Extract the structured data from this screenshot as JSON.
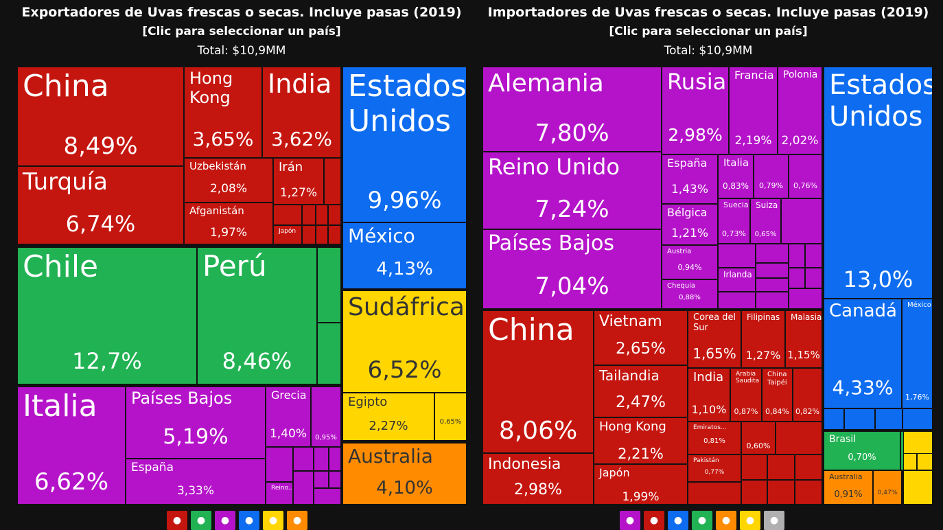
{
  "exporters": {
    "title": "Exportadores de Uvas frescas o secas. Incluye pasas (2019)",
    "subtitle": "[Clic para seleccionar un país]",
    "total": "Total: $10,9MM"
  },
  "importers": {
    "title": "Importadores de Uvas frescas o secas. Incluye pasas (2019)",
    "subtitle": "[Clic para seleccionar un país]",
    "total": "Total: $10,9MM"
  },
  "colors": {
    "asia": "#c4160f",
    "southamerica": "#21b253",
    "europe": "#b513c9",
    "northamerica": "#0d6cf0",
    "africa": "#ffd600",
    "oceania": "#ff8c00",
    "other": "#b0b0b0"
  },
  "chart_data": [
    {
      "type": "treemap",
      "title": "Exportadores de Uvas frescas o secas. Incluye pasas (2019)",
      "items": [
        {
          "name": "China",
          "value": "8,49%",
          "region": "asia"
        },
        {
          "name": "Hong Kong",
          "value": "3,65%",
          "region": "asia"
        },
        {
          "name": "India",
          "value": "3,62%",
          "region": "asia"
        },
        {
          "name": "Turquía",
          "value": "6,74%",
          "region": "asia"
        },
        {
          "name": "Uzbekistán",
          "value": "2,08%",
          "region": "asia"
        },
        {
          "name": "Irán",
          "value": "1,27%",
          "region": "asia"
        },
        {
          "name": "Afganistán",
          "value": "1,97%",
          "region": "asia"
        },
        {
          "name": "Japón",
          "value": "",
          "region": "asia"
        },
        {
          "name": "Chile",
          "value": "12,7%",
          "region": "southamerica"
        },
        {
          "name": "Perú",
          "value": "8,46%",
          "region": "southamerica"
        },
        {
          "name": "Italia",
          "value": "6,62%",
          "region": "europe"
        },
        {
          "name": "Países Bajos",
          "value": "5,19%",
          "region": "europe"
        },
        {
          "name": "España",
          "value": "3,33%",
          "region": "europe"
        },
        {
          "name": "Grecia",
          "value": "1,40%",
          "region": "europe"
        },
        {
          "name": "",
          "value": "0,95%",
          "region": "europe"
        },
        {
          "name": "Reino...",
          "value": "",
          "region": "europe"
        },
        {
          "name": "Estados Unidos",
          "value": "9,96%",
          "region": "northamerica"
        },
        {
          "name": "México",
          "value": "4,13%",
          "region": "northamerica"
        },
        {
          "name": "Sudáfrica",
          "value": "6,52%",
          "region": "africa"
        },
        {
          "name": "Egipto",
          "value": "2,27%",
          "region": "africa"
        },
        {
          "name": "",
          "value": "0,65%",
          "region": "africa"
        },
        {
          "name": "Australia",
          "value": "4,10%",
          "region": "oceania"
        }
      ]
    },
    {
      "type": "treemap",
      "title": "Importadores de Uvas frescas o secas. Incluye pasas (2019)",
      "items": [
        {
          "name": "Alemania",
          "value": "7,80%",
          "region": "europe"
        },
        {
          "name": "Reino Unido",
          "value": "7,24%",
          "region": "europe"
        },
        {
          "name": "Países Bajos",
          "value": "7,04%",
          "region": "europe"
        },
        {
          "name": "Rusia",
          "value": "2,98%",
          "region": "europe"
        },
        {
          "name": "Francia",
          "value": "2,19%",
          "region": "europe"
        },
        {
          "name": "Polonia",
          "value": "2,02%",
          "region": "europe"
        },
        {
          "name": "España",
          "value": "1,43%",
          "region": "europe"
        },
        {
          "name": "Italia",
          "value": "0,83%",
          "region": "europe"
        },
        {
          "name": "",
          "value": "0,79%",
          "region": "europe"
        },
        {
          "name": "",
          "value": "0,76%",
          "region": "europe"
        },
        {
          "name": "Bélgica",
          "value": "1,21%",
          "region": "europe"
        },
        {
          "name": "Suecia",
          "value": "0,73%",
          "region": "europe"
        },
        {
          "name": "Suiza",
          "value": "0,65%",
          "region": "europe"
        },
        {
          "name": "Austria",
          "value": "0,94%",
          "region": "europe"
        },
        {
          "name": "Irlanda",
          "value": "",
          "region": "europe"
        },
        {
          "name": "Chequia",
          "value": "0,88%",
          "region": "europe"
        },
        {
          "name": "China",
          "value": "8,06%",
          "region": "asia"
        },
        {
          "name": "Indonesia",
          "value": "2,98%",
          "region": "asia"
        },
        {
          "name": "Vietnam",
          "value": "2,65%",
          "region": "asia"
        },
        {
          "name": "Tailandia",
          "value": "2,47%",
          "region": "asia"
        },
        {
          "name": "Hong Kong",
          "value": "2,21%",
          "region": "asia"
        },
        {
          "name": "Japón",
          "value": "1,99%",
          "region": "asia"
        },
        {
          "name": "Corea del Sur",
          "value": "1,65%",
          "region": "asia"
        },
        {
          "name": "Filipinas",
          "value": "1,27%",
          "region": "asia"
        },
        {
          "name": "Malasia",
          "value": "1,15%",
          "region": "asia"
        },
        {
          "name": "India",
          "value": "1,10%",
          "region": "asia"
        },
        {
          "name": "Arabia Saudita",
          "value": "0,87%",
          "region": "asia"
        },
        {
          "name": "China Taipéi",
          "value": "0,84%",
          "region": "asia"
        },
        {
          "name": "",
          "value": "0,82%",
          "region": "asia"
        },
        {
          "name": "Emiratos...",
          "value": "0,81%",
          "region": "asia"
        },
        {
          "name": "",
          "value": "0,60%",
          "region": "asia"
        },
        {
          "name": "Pakistán",
          "value": "0,77%",
          "region": "asia"
        },
        {
          "name": "Estados Unidos",
          "value": "13,0%",
          "region": "northamerica"
        },
        {
          "name": "Canadá",
          "value": "4,33%",
          "region": "northamerica"
        },
        {
          "name": "México",
          "value": "1,76%",
          "region": "northamerica"
        },
        {
          "name": "Brasil",
          "value": "0,70%",
          "region": "southamerica"
        },
        {
          "name": "Australia",
          "value": "0,91%",
          "region": "oceania"
        },
        {
          "name": "",
          "value": "0,47%",
          "region": "oceania"
        }
      ]
    }
  ]
}
